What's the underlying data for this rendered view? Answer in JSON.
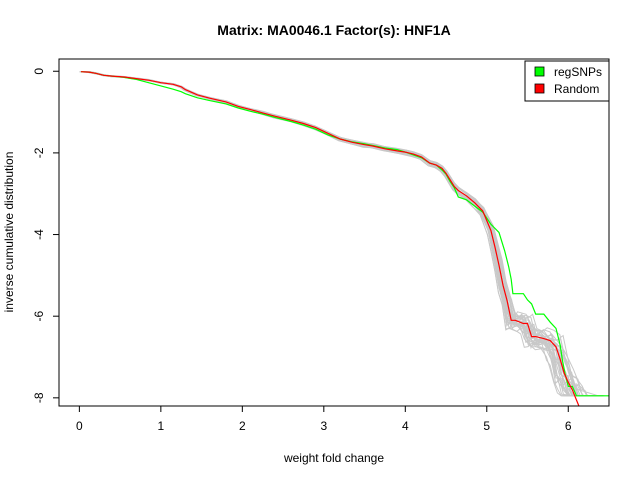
{
  "chart_data": {
    "type": "line",
    "title": "Matrix: MA0046.1 Factor(s): HNF1A",
    "xlabel": "weight fold change",
    "ylabel": "inverse cumulative distribution",
    "xlim": [
      -0.25,
      6.5
    ],
    "ylim": [
      -8.2,
      0.3
    ],
    "x_ticks": [
      "0",
      "1",
      "2",
      "3",
      "4",
      "5",
      "6"
    ],
    "y_ticks": [
      "0",
      "-2",
      "-4",
      "-6",
      "-8"
    ],
    "grid": false,
    "legend_position": "top-right",
    "legend": [
      {
        "label": "regSNPs",
        "color": "#00ff00"
      },
      {
        "label": "Random",
        "color": "#ff0000"
      }
    ],
    "series": [
      {
        "name": "regSNPs",
        "color": "#00ff00",
        "x": [
          0.02,
          0.12,
          0.2,
          0.3,
          0.4,
          0.55,
          0.7,
          0.85,
          1.0,
          1.15,
          1.25,
          1.3,
          1.45,
          1.6,
          1.8,
          1.95,
          2.1,
          2.25,
          2.4,
          2.6,
          2.75,
          2.9,
          3.05,
          3.2,
          3.35,
          3.5,
          3.6,
          3.75,
          3.9,
          4.0,
          4.1,
          4.2,
          4.3,
          4.38,
          4.45,
          4.5,
          4.55,
          4.6,
          4.65,
          4.75,
          4.85,
          4.95,
          5.05,
          5.15,
          5.22,
          5.27,
          5.3,
          5.32,
          5.45,
          5.5,
          5.55,
          5.6,
          5.7,
          5.78,
          5.85,
          5.9,
          5.93,
          5.96,
          6.0,
          6.05,
          6.1,
          6.5
        ],
        "y": [
          -0.01,
          -0.02,
          -0.05,
          -0.1,
          -0.12,
          -0.15,
          -0.2,
          -0.28,
          -0.36,
          -0.44,
          -0.5,
          -0.55,
          -0.65,
          -0.72,
          -0.8,
          -0.9,
          -0.98,
          -1.05,
          -1.13,
          -1.23,
          -1.32,
          -1.42,
          -1.56,
          -1.66,
          -1.73,
          -1.78,
          -1.82,
          -1.88,
          -1.92,
          -1.98,
          -2.05,
          -2.12,
          -2.25,
          -2.3,
          -2.42,
          -2.52,
          -2.7,
          -2.85,
          -3.08,
          -3.15,
          -3.3,
          -3.45,
          -3.75,
          -3.95,
          -4.4,
          -4.8,
          -5.1,
          -5.45,
          -5.45,
          -5.6,
          -5.7,
          -5.95,
          -5.95,
          -6.15,
          -6.3,
          -6.7,
          -7.1,
          -7.4,
          -7.72,
          -7.72,
          -7.95,
          -7.95
        ]
      },
      {
        "name": "Random",
        "color": "#ff0000",
        "x": [
          0.02,
          0.12,
          0.2,
          0.3,
          0.4,
          0.55,
          0.7,
          0.85,
          1.0,
          1.15,
          1.25,
          1.3,
          1.45,
          1.6,
          1.8,
          1.95,
          2.1,
          2.25,
          2.4,
          2.6,
          2.75,
          2.9,
          3.05,
          3.2,
          3.35,
          3.5,
          3.6,
          3.75,
          3.9,
          4.0,
          4.1,
          4.2,
          4.3,
          4.38,
          4.45,
          4.5,
          4.55,
          4.6,
          4.65,
          4.75,
          4.85,
          4.95,
          5.05,
          5.1,
          5.15,
          5.2,
          5.25,
          5.3,
          5.35,
          5.45,
          5.5,
          5.55,
          5.6,
          5.7,
          5.78,
          5.85,
          5.9,
          5.95,
          6.0,
          6.05,
          6.1,
          6.13
        ],
        "y": [
          -0.01,
          -0.02,
          -0.05,
          -0.1,
          -0.12,
          -0.14,
          -0.18,
          -0.22,
          -0.28,
          -0.32,
          -0.38,
          -0.45,
          -0.58,
          -0.66,
          -0.75,
          -0.86,
          -0.94,
          -1.02,
          -1.1,
          -1.2,
          -1.28,
          -1.38,
          -1.52,
          -1.66,
          -1.74,
          -1.8,
          -1.83,
          -1.9,
          -1.95,
          -1.98,
          -2.03,
          -2.1,
          -2.25,
          -2.3,
          -2.38,
          -2.5,
          -2.66,
          -2.82,
          -2.92,
          -3.05,
          -3.22,
          -3.42,
          -3.9,
          -4.3,
          -4.75,
          -5.25,
          -5.62,
          -6.1,
          -6.1,
          -6.18,
          -6.18,
          -6.5,
          -6.5,
          -6.55,
          -6.6,
          -6.75,
          -7.05,
          -7.4,
          -7.62,
          -7.8,
          -8.05,
          -8.2
        ]
      }
    ]
  }
}
